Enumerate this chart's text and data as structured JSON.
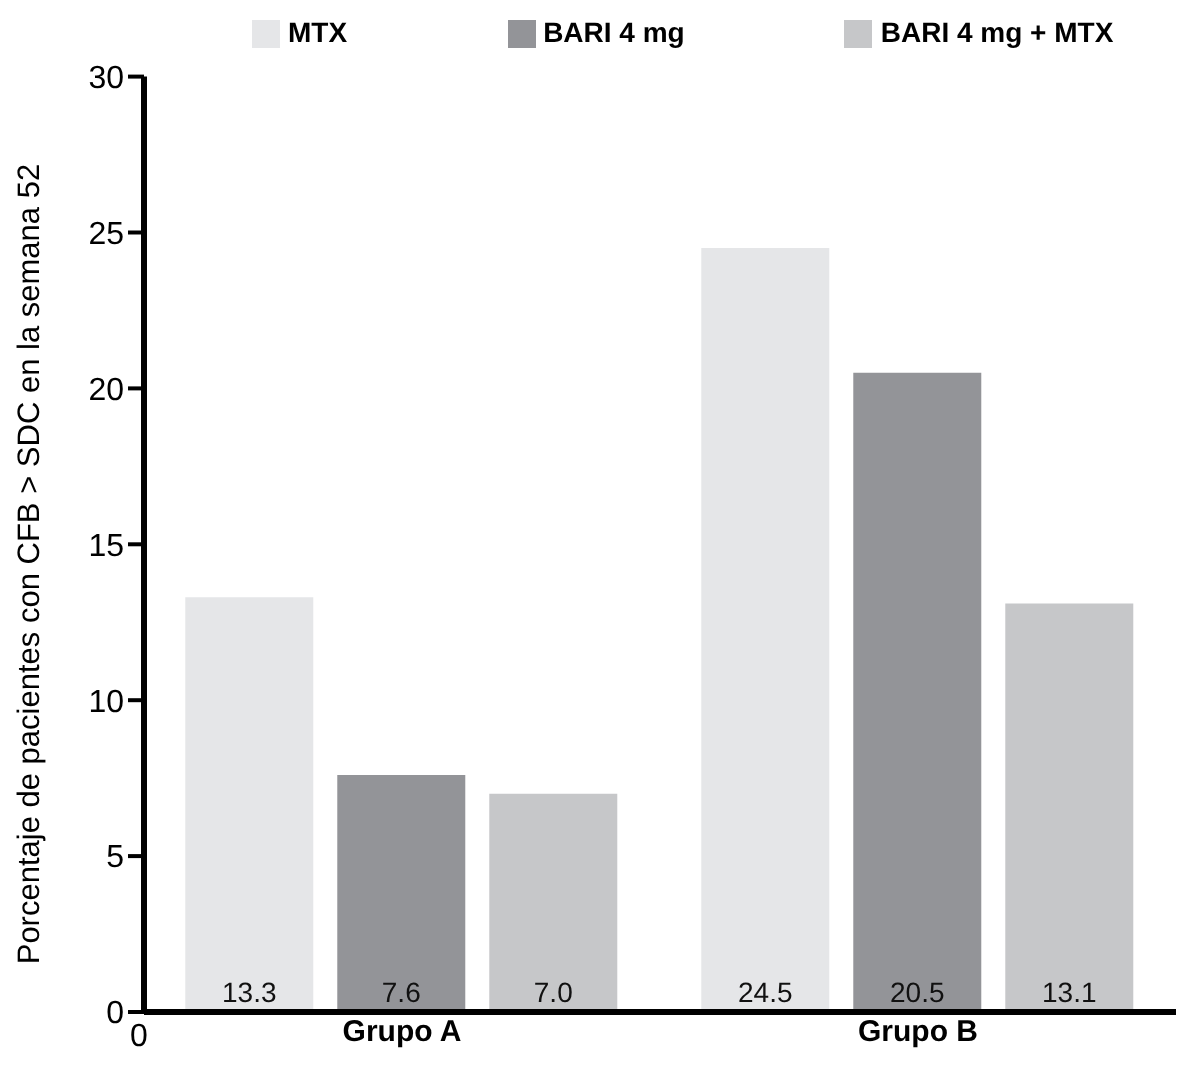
{
  "chart_data": {
    "type": "bar",
    "ylabel": "Porcentaje de pacientes con CFB > SDC en la semana 52",
    "categories": [
      "Grupo A",
      "Grupo B"
    ],
    "series": [
      {
        "name": "MTX",
        "color": "#e5e6e8",
        "values": [
          13.3,
          24.5
        ],
        "value_labels": [
          "13.3",
          "24.5"
        ]
      },
      {
        "name": "BARI 4 mg",
        "color": "#939498",
        "values": [
          7.6,
          20.5
        ],
        "value_labels": [
          "7.6",
          "20.5"
        ]
      },
      {
        "name": "BARI 4 mg + MTX",
        "color": "#c6c7c9",
        "values": [
          7.0,
          13.1
        ],
        "value_labels": [
          "7.0",
          "13.1"
        ]
      }
    ],
    "ylim": [
      0,
      30
    ],
    "yticks": [
      0,
      5,
      10,
      15,
      20,
      25,
      30
    ],
    "grid": false,
    "legend": "top",
    "annotations": [
      "0"
    ]
  }
}
